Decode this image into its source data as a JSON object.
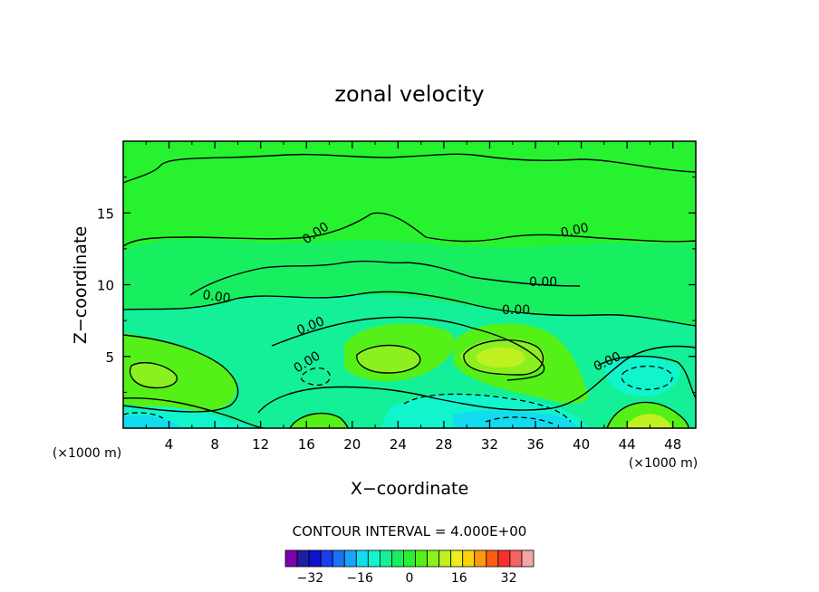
{
  "chart_data": {
    "type": "heatmap",
    "subtype": "filled-contour",
    "title": "zonal velocity",
    "xlabel": "X−coordinate",
    "ylabel": "Z−coordinate",
    "x_unit_left": "(×1000 m)",
    "x_unit_right": "(×1000 m)",
    "xlim": [
      0,
      50
    ],
    "ylim": [
      0,
      20
    ],
    "x_ticks": [
      "4",
      "8",
      "12",
      "16",
      "20",
      "24",
      "28",
      "32",
      "36",
      "40",
      "44",
      "48"
    ],
    "y_ticks": [
      "5",
      "10",
      "15"
    ],
    "contour_interval_text": "CONTOUR INTERVAL = 4.000E+00",
    "contour_labels": [
      {
        "text": "0.00",
        "x": 17.5,
        "z": 13.8
      },
      {
        "text": "0.00",
        "x": 40.0,
        "z": 14.0
      },
      {
        "text": "0.00",
        "x": 8.5,
        "z": 9.5
      },
      {
        "text": "0.00",
        "x": 36.5,
        "z": 10.0
      },
      {
        "text": "0.00",
        "x": 34.5,
        "z": 8.2
      },
      {
        "text": "0.00",
        "x": 17.0,
        "z": 6.8
      },
      {
        "text": "0.00",
        "x": 16.5,
        "z": 4.4
      },
      {
        "text": "0.00",
        "x": 42.5,
        "z": 4.8
      }
    ],
    "colorbar": {
      "tick_labels": [
        "−32",
        "−16",
        "0",
        "16",
        "32"
      ],
      "tick_values": [
        -32,
        -16,
        0,
        16,
        32
      ],
      "levels": [
        -40,
        -36,
        -32,
        -28,
        -24,
        -20,
        -16,
        -12,
        -8,
        -4,
        0,
        4,
        8,
        12,
        16,
        20,
        24,
        28,
        32,
        36,
        40
      ],
      "colors": [
        "#7f00b0",
        "#1e1e9e",
        "#0e12cc",
        "#1b3cf0",
        "#1a72f5",
        "#17a6f5",
        "#13dcf0",
        "#10f5cc",
        "#14f098",
        "#18ef60",
        "#26f230",
        "#55f018",
        "#8cf020",
        "#bff020",
        "#ecee1c",
        "#fad210",
        "#fa9a10",
        "#fc5c12",
        "#fa3030",
        "#f56262",
        "#f2a6a6"
      ]
    }
  }
}
